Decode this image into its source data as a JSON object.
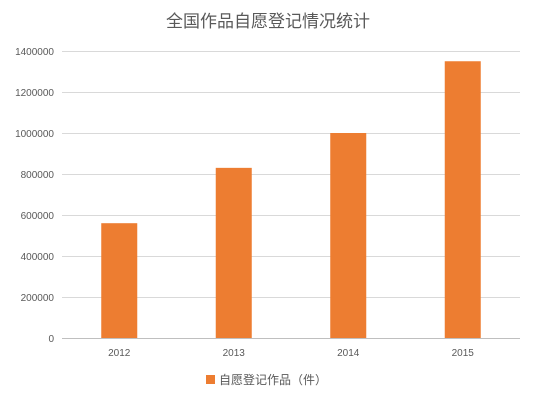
{
  "chart_data": {
    "type": "bar",
    "title": "全国作品自愿登记情况统计",
    "categories": [
      "2012",
      "2013",
      "2014",
      "2015"
    ],
    "series": [
      {
        "name": "自愿登记作品（件）",
        "values": [
          560000,
          830000,
          1000000,
          1350000
        ],
        "color": "#ED7D31"
      }
    ],
    "ylim": [
      0,
      1400000
    ],
    "yticks": [
      "0",
      "200000",
      "400000",
      "600000",
      "800000",
      "1000000",
      "1200000",
      "1400000"
    ],
    "grid": true,
    "legend": "bottom"
  }
}
